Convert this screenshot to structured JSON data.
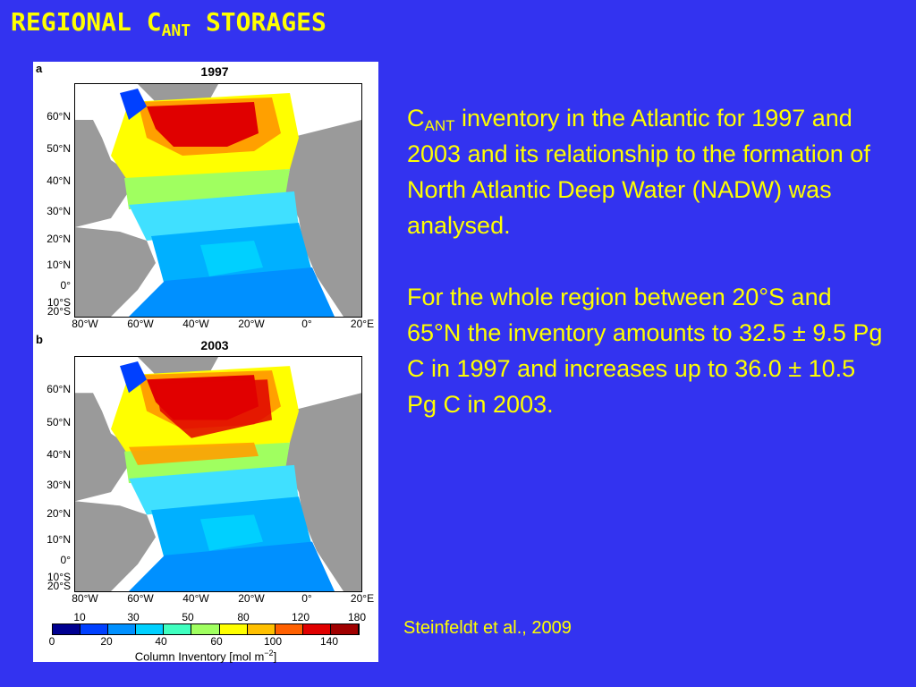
{
  "title": {
    "main": "REGIONAL C",
    "sub": "ANT",
    "rest": " STORAGES"
  },
  "figure": {
    "panels": [
      {
        "letter": "a",
        "year": "1997"
      },
      {
        "letter": "b",
        "year": "2003"
      }
    ],
    "lat_labels": [
      "60°N",
      "50°N",
      "40°N",
      "30°N",
      "20°N",
      "10°N",
      "0°",
      "10°S",
      "20°S"
    ],
    "lon_labels": [
      "80°W",
      "60°W",
      "40°W",
      "20°W",
      "0°",
      "20°E"
    ],
    "colorbar": {
      "upper_ticks": [
        "10",
        "30",
        "50",
        "80",
        "120",
        "180"
      ],
      "lower_ticks": [
        "0",
        "20",
        "40",
        "60",
        "100",
        "140"
      ],
      "colors": [
        "#000090",
        "#0040ff",
        "#0090ff",
        "#00d0ff",
        "#40ffc0",
        "#a0ff60",
        "#ffff00",
        "#ffc000",
        "#ff6000",
        "#e00000",
        "#a00000"
      ],
      "title": "Column Inventory [mol m",
      "title_sup": "−2",
      "title_end": "]"
    }
  },
  "paragraph1": {
    "c": "C",
    "sub": "ANT",
    "rest": " inventory in the Atlantic for 1997 and 2003 and its relationship to the formation of North Atlantic Deep Water (NADW) was analysed."
  },
  "paragraph2": "For the whole region between 20°S and 65°N the inventory amounts to 32.5 ± 9.5 Pg C in 1997 and increases up to 36.0 ± 10.5 Pg C in 2003.",
  "citation": "Steinfeldt et al., 2009"
}
